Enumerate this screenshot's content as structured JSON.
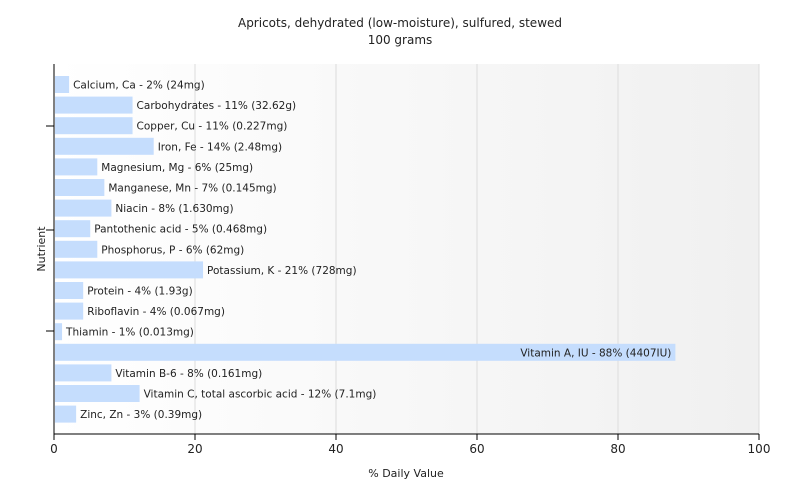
{
  "chart_data": {
    "type": "bar",
    "orientation": "horizontal",
    "title": "Apricots, dehydrated (low-moisture), sulfured, stewed",
    "subtitle": "100 grams",
    "xlabel": "% Daily Value",
    "ylabel": "Nutrient",
    "xlim": [
      0,
      100
    ],
    "xticks": [
      "0",
      "20",
      "40",
      "60",
      "80",
      "100"
    ],
    "grid": true,
    "bar_color": "#c5ddfd",
    "categories": [
      "Calcium, Ca",
      "Carbohydrates",
      "Copper, Cu",
      "Iron, Fe",
      "Magnesium, Mg",
      "Manganese, Mn",
      "Niacin",
      "Pantothenic acid",
      "Phosphorus, P",
      "Potassium, K",
      "Protein",
      "Riboflavin",
      "Thiamin",
      "Vitamin A, IU",
      "Vitamin B-6",
      "Vitamin C, total ascorbic acid",
      "Zinc, Zn"
    ],
    "values": [
      2,
      11,
      11,
      14,
      6,
      7,
      8,
      5,
      6,
      21,
      4,
      4,
      1,
      88,
      8,
      12,
      3
    ],
    "labels": [
      "Calcium, Ca - 2% (24mg)",
      "Carbohydrates - 11% (32.62g)",
      "Copper, Cu - 11% (0.227mg)",
      "Iron, Fe - 14% (2.48mg)",
      "Magnesium, Mg - 6% (25mg)",
      "Manganese, Mn - 7% (0.145mg)",
      "Niacin - 8% (1.630mg)",
      "Pantothenic acid - 5% (0.468mg)",
      "Phosphorus, P - 6% (62mg)",
      "Potassium, K - 21% (728mg)",
      "Protein - 4% (1.93g)",
      "Riboflavin - 4% (0.067mg)",
      "Thiamin - 1% (0.013mg)",
      "Vitamin A, IU - 88% (4407IU)",
      "Vitamin B-6 - 8% (0.161mg)",
      "Vitamin C, total ascorbic acid - 12% (7.1mg)",
      "Zinc, Zn - 3% (0.39mg)"
    ]
  }
}
